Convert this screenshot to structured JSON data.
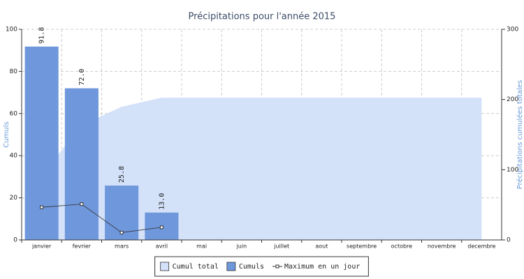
{
  "chart_data": {
    "type": "bar",
    "title": "Précipitations pour l'année 2015",
    "categories": [
      "janvier",
      "fevrier",
      "mars",
      "avril",
      "mai",
      "juin",
      "juillet",
      "aout",
      "septembre",
      "octobre",
      "novembre",
      "decembre"
    ],
    "series": [
      {
        "name": "Cumul total",
        "type": "area",
        "axis": "y2",
        "color": "#d3e1f9",
        "values": [
          91.8,
          163.8,
          189.6,
          202.6,
          202.6,
          202.6,
          202.6,
          202.6,
          202.6,
          202.6,
          202.6,
          202.6
        ]
      },
      {
        "name": "Cumuls",
        "type": "bar",
        "color": "#6f97dc",
        "values": [
          91.8,
          72.0,
          25.8,
          13.0,
          null,
          null,
          null,
          null,
          null,
          null,
          null,
          null
        ],
        "value_labels": [
          "91.8",
          "72.0",
          "25.8",
          "13.0",
          null,
          null,
          null,
          null,
          null,
          null,
          null,
          null
        ]
      },
      {
        "name": "Maximum en un jour",
        "type": "line",
        "color": "#333333",
        "values": [
          15.5,
          17,
          3.5,
          6,
          null,
          null,
          null,
          null,
          null,
          null,
          null,
          null
        ]
      }
    ],
    "ylabel": "Cumuls",
    "y2label": "Précipitations cumulées totales",
    "ylim": [
      0,
      100
    ],
    "yticks": [
      0,
      20,
      40,
      60,
      80,
      100
    ],
    "y2lim": [
      0,
      300
    ],
    "y2ticks": [
      0,
      100,
      200,
      300
    ],
    "grid": true,
    "legend": "bottom"
  }
}
